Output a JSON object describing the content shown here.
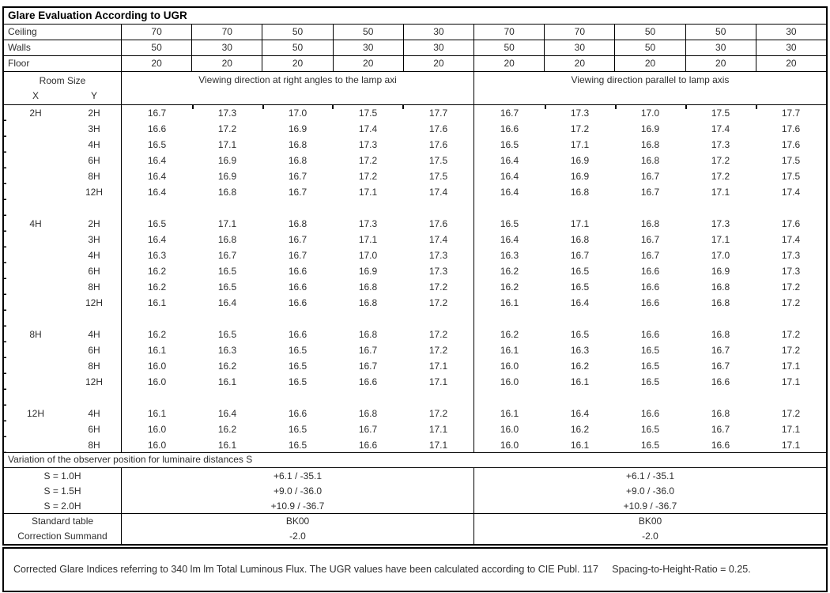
{
  "title": "Glare Evaluation According to UGR",
  "surface_rows": [
    {
      "label": "Ceiling",
      "values": [
        "70",
        "70",
        "50",
        "50",
        "30",
        "70",
        "70",
        "50",
        "50",
        "30"
      ]
    },
    {
      "label": "Walls",
      "values": [
        "50",
        "30",
        "50",
        "30",
        "30",
        "50",
        "30",
        "50",
        "30",
        "30"
      ]
    },
    {
      "label": "Floor",
      "values": [
        "20",
        "20",
        "20",
        "20",
        "20",
        "20",
        "20",
        "20",
        "20",
        "20"
      ]
    }
  ],
  "header": {
    "room_size": "Room Size",
    "x_label": "X",
    "y_label": "Y",
    "left_title": "Viewing direction at right angles to the lamp axi",
    "right_title": "Viewing direction parallel to lamp axis"
  },
  "ugr_blocks": [
    {
      "x": "2H",
      "rows": [
        {
          "y": "2H",
          "values": [
            "16.7",
            "17.3",
            "17.0",
            "17.5",
            "17.7",
            "16.7",
            "17.3",
            "17.0",
            "17.5",
            "17.7"
          ]
        },
        {
          "y": "3H",
          "values": [
            "16.6",
            "17.2",
            "16.9",
            "17.4",
            "17.6",
            "16.6",
            "17.2",
            "16.9",
            "17.4",
            "17.6"
          ]
        },
        {
          "y": "4H",
          "values": [
            "16.5",
            "17.1",
            "16.8",
            "17.3",
            "17.6",
            "16.5",
            "17.1",
            "16.8",
            "17.3",
            "17.6"
          ]
        },
        {
          "y": "6H",
          "values": [
            "16.4",
            "16.9",
            "16.8",
            "17.2",
            "17.5",
            "16.4",
            "16.9",
            "16.8",
            "17.2",
            "17.5"
          ]
        },
        {
          "y": "8H",
          "values": [
            "16.4",
            "16.9",
            "16.7",
            "17.2",
            "17.5",
            "16.4",
            "16.9",
            "16.7",
            "17.2",
            "17.5"
          ]
        },
        {
          "y": "12H",
          "values": [
            "16.4",
            "16.8",
            "16.7",
            "17.1",
            "17.4",
            "16.4",
            "16.8",
            "16.7",
            "17.1",
            "17.4"
          ]
        }
      ]
    },
    {
      "x": "4H",
      "rows": [
        {
          "y": "2H",
          "values": [
            "16.5",
            "17.1",
            "16.8",
            "17.3",
            "17.6",
            "16.5",
            "17.1",
            "16.8",
            "17.3",
            "17.6"
          ]
        },
        {
          "y": "3H",
          "values": [
            "16.4",
            "16.8",
            "16.7",
            "17.1",
            "17.4",
            "16.4",
            "16.8",
            "16.7",
            "17.1",
            "17.4"
          ]
        },
        {
          "y": "4H",
          "values": [
            "16.3",
            "16.7",
            "16.7",
            "17.0",
            "17.3",
            "16.3",
            "16.7",
            "16.7",
            "17.0",
            "17.3"
          ]
        },
        {
          "y": "6H",
          "values": [
            "16.2",
            "16.5",
            "16.6",
            "16.9",
            "17.3",
            "16.2",
            "16.5",
            "16.6",
            "16.9",
            "17.3"
          ]
        },
        {
          "y": "8H",
          "values": [
            "16.2",
            "16.5",
            "16.6",
            "16.8",
            "17.2",
            "16.2",
            "16.5",
            "16.6",
            "16.8",
            "17.2"
          ]
        },
        {
          "y": "12H",
          "values": [
            "16.1",
            "16.4",
            "16.6",
            "16.8",
            "17.2",
            "16.1",
            "16.4",
            "16.6",
            "16.8",
            "17.2"
          ]
        }
      ]
    },
    {
      "x": "8H",
      "rows": [
        {
          "y": "4H",
          "values": [
            "16.2",
            "16.5",
            "16.6",
            "16.8",
            "17.2",
            "16.2",
            "16.5",
            "16.6",
            "16.8",
            "17.2"
          ]
        },
        {
          "y": "6H",
          "values": [
            "16.1",
            "16.3",
            "16.5",
            "16.7",
            "17.2",
            "16.1",
            "16.3",
            "16.5",
            "16.7",
            "17.2"
          ]
        },
        {
          "y": "8H",
          "values": [
            "16.0",
            "16.2",
            "16.5",
            "16.7",
            "17.1",
            "16.0",
            "16.2",
            "16.5",
            "16.7",
            "17.1"
          ]
        },
        {
          "y": "12H",
          "values": [
            "16.0",
            "16.1",
            "16.5",
            "16.6",
            "17.1",
            "16.0",
            "16.1",
            "16.5",
            "16.6",
            "17.1"
          ]
        }
      ]
    },
    {
      "x": "12H",
      "rows": [
        {
          "y": "4H",
          "values": [
            "16.1",
            "16.4",
            "16.6",
            "16.8",
            "17.2",
            "16.1",
            "16.4",
            "16.6",
            "16.8",
            "17.2"
          ]
        },
        {
          "y": "6H",
          "values": [
            "16.0",
            "16.2",
            "16.5",
            "16.7",
            "17.1",
            "16.0",
            "16.2",
            "16.5",
            "16.7",
            "17.1"
          ]
        },
        {
          "y": "8H",
          "values": [
            "16.0",
            "16.1",
            "16.5",
            "16.6",
            "17.1",
            "16.0",
            "16.1",
            "16.5",
            "16.6",
            "17.1"
          ]
        }
      ]
    }
  ],
  "variation": {
    "heading": "Variation of the observer position for luminaire distances S",
    "rows": [
      {
        "label": "S = 1.0H",
        "left": "+6.1 / -35.1",
        "right": "+6.1 / -35.1"
      },
      {
        "label": "S = 1.5H",
        "left": "+9.0 / -36.0",
        "right": "+9.0 / -36.0"
      },
      {
        "label": "S = 2.0H",
        "left": "+10.9 / -36.7",
        "right": "+10.9 / -36.7"
      }
    ]
  },
  "summary_rows": [
    {
      "label": "Standard table",
      "left": "BK00",
      "right": "BK00"
    },
    {
      "label": "Correction Summand",
      "left": "-2.0",
      "right": "-2.0"
    }
  ],
  "footer": "Corrected Glare Indices referring to 340 lm lm Total Luminous Flux. The UGR values have been calculated according to CIE Publ. 117     Spacing-to-Height-Ratio = 0.25.",
  "colors": {
    "border": "#000000",
    "text": "#2e2e2e",
    "background": "#ffffff"
  }
}
